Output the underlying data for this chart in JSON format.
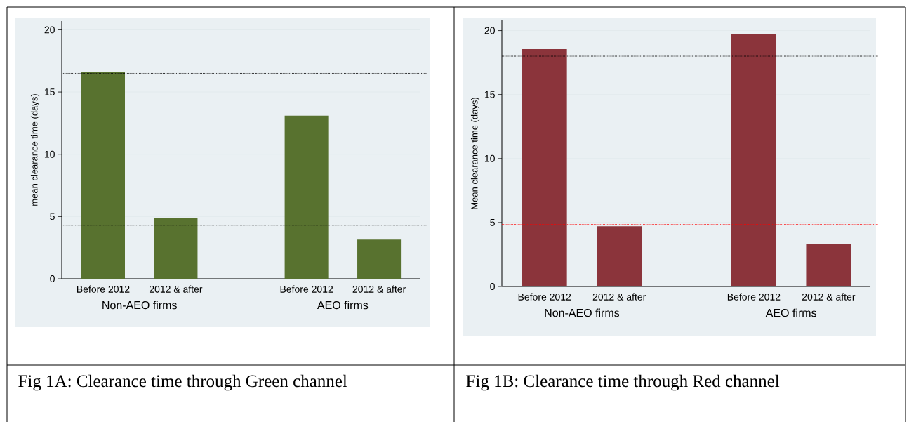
{
  "chart_data": [
    {
      "type": "bar",
      "title": "Fig 1A: Clearance time through Green channel",
      "ylabel": "mean clearance time (days)",
      "categories": [
        "Before 2012",
        "2012 & after",
        "Before 2012",
        "2012 & after"
      ],
      "values": [
        16.6,
        4.85,
        13.1,
        3.15
      ],
      "color": "#58722f",
      "ylim": [
        0,
        20.7
      ],
      "yticks": [
        0,
        5,
        10,
        15,
        20
      ],
      "grid": "y",
      "ref_lines": [
        {
          "axis": "y",
          "value": 16.5,
          "color": "#000000",
          "line_style": "dotted"
        },
        {
          "axis": "y",
          "value": 4.3,
          "color": "#000000",
          "line_style": "dotted"
        }
      ],
      "annotations": [
        "Non-AEO firms",
        "AEO firms"
      ]
    },
    {
      "type": "bar",
      "title": "Fig 1B: Clearance time through Red channel",
      "ylabel": "Mean clearance time (days)",
      "categories": [
        "Before 2012",
        "2012 & after",
        "Before 2012",
        "2012 & after"
      ],
      "values": [
        18.55,
        4.7,
        19.75,
        3.3
      ],
      "color": "#8b343b",
      "ylim": [
        0,
        20.8
      ],
      "yticks": [
        0,
        5,
        10,
        15,
        20
      ],
      "grid": "y",
      "ref_lines": [
        {
          "axis": "y",
          "value": 18.0,
          "color": "#000000",
          "line_style": "dotted"
        },
        {
          "axis": "y",
          "value": 4.85,
          "color": "#ff0000",
          "line_style": "dotted"
        }
      ],
      "annotations": [
        "Non-AEO firms",
        "AEO firms"
      ]
    }
  ]
}
